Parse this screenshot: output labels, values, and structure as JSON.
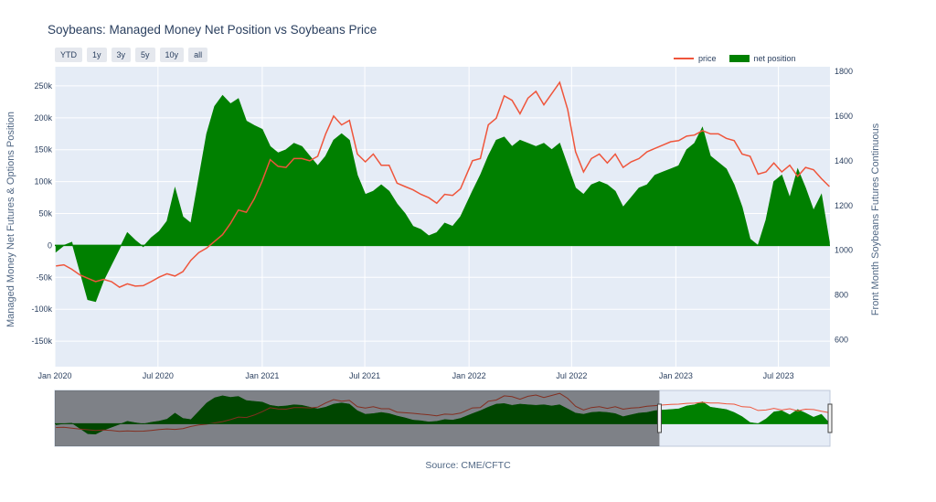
{
  "title": "Soybeans: Managed Money Net Position vs Soybeans Price",
  "range_buttons": [
    "YTD",
    "1y",
    "3y",
    "5y",
    "10y",
    "all"
  ],
  "legend": {
    "price": "price",
    "net": "net position"
  },
  "source": "Source: CME/CFTC",
  "colors": {
    "price": "#ef553b",
    "net": "#008000",
    "plot_bg": "#e5ecf6",
    "grid": "#ffffff"
  },
  "chart_data": {
    "type": "line",
    "title": "Soybeans: Managed Money Net Position vs Soybeans Price",
    "x_ticks": [
      "Jan 2020",
      "Jul 2020",
      "Jan 2021",
      "Jul 2021",
      "Jan 2022",
      "Jul 2022",
      "Jan 2023",
      "Jul 2023"
    ],
    "x_range": [
      "2020-01-01",
      "2023-09-30"
    ],
    "y_left": {
      "label": "Managed Money Net Futures & Options Position",
      "range": [
        -190000,
        280000
      ],
      "ticks": [
        -150000,
        -100000,
        -50000,
        0,
        50000,
        100000,
        150000,
        200000,
        250000
      ],
      "tick_labels": [
        "-150k",
        "-100k",
        "-50k",
        "0",
        "50k",
        "100k",
        "150k",
        "200k",
        "250k"
      ]
    },
    "y_right": {
      "label": "Front Month Soybeans Futures Continuous",
      "range": [
        480,
        1820
      ],
      "ticks": [
        600,
        800,
        1000,
        1200,
        1400,
        1600,
        1800
      ],
      "tick_labels": [
        "600",
        "800",
        "1000",
        "1200",
        "1400",
        "1600",
        "1800"
      ]
    },
    "series": [
      {
        "name": "price",
        "axis": "right",
        "kind": "line",
        "points": [
          [
            "2020-01-03",
            930
          ],
          [
            "2020-01-17",
            935
          ],
          [
            "2020-01-31",
            915
          ],
          [
            "2020-02-14",
            890
          ],
          [
            "2020-02-28",
            875
          ],
          [
            "2020-03-13",
            860
          ],
          [
            "2020-03-27",
            870
          ],
          [
            "2020-04-10",
            860
          ],
          [
            "2020-04-24",
            835
          ],
          [
            "2020-05-08",
            850
          ],
          [
            "2020-05-22",
            840
          ],
          [
            "2020-06-05",
            842
          ],
          [
            "2020-06-19",
            860
          ],
          [
            "2020-07-03",
            880
          ],
          [
            "2020-07-17",
            895
          ],
          [
            "2020-07-31",
            885
          ],
          [
            "2020-08-14",
            905
          ],
          [
            "2020-08-28",
            955
          ],
          [
            "2020-09-11",
            990
          ],
          [
            "2020-09-25",
            1010
          ],
          [
            "2020-10-09",
            1040
          ],
          [
            "2020-10-23",
            1070
          ],
          [
            "2020-11-06",
            1120
          ],
          [
            "2020-11-20",
            1180
          ],
          [
            "2020-12-04",
            1170
          ],
          [
            "2020-12-18",
            1230
          ],
          [
            "2021-01-01",
            1310
          ],
          [
            "2021-01-15",
            1405
          ],
          [
            "2021-01-29",
            1375
          ],
          [
            "2021-02-12",
            1370
          ],
          [
            "2021-02-26",
            1410
          ],
          [
            "2021-03-12",
            1410
          ],
          [
            "2021-03-26",
            1400
          ],
          [
            "2021-04-09",
            1420
          ],
          [
            "2021-04-23",
            1520
          ],
          [
            "2021-05-07",
            1600
          ],
          [
            "2021-05-21",
            1560
          ],
          [
            "2021-06-04",
            1580
          ],
          [
            "2021-06-18",
            1430
          ],
          [
            "2021-07-02",
            1395
          ],
          [
            "2021-07-16",
            1430
          ],
          [
            "2021-07-30",
            1380
          ],
          [
            "2021-08-13",
            1380
          ],
          [
            "2021-08-27",
            1300
          ],
          [
            "2021-09-10",
            1285
          ],
          [
            "2021-09-24",
            1270
          ],
          [
            "2021-10-08",
            1250
          ],
          [
            "2021-10-22",
            1235
          ],
          [
            "2021-11-05",
            1210
          ],
          [
            "2021-11-19",
            1250
          ],
          [
            "2021-12-03",
            1245
          ],
          [
            "2021-12-17",
            1275
          ],
          [
            "2022-01-07",
            1400
          ],
          [
            "2022-01-21",
            1410
          ],
          [
            "2022-02-04",
            1560
          ],
          [
            "2022-02-18",
            1590
          ],
          [
            "2022-03-04",
            1690
          ],
          [
            "2022-03-18",
            1670
          ],
          [
            "2022-04-01",
            1610
          ],
          [
            "2022-04-15",
            1680
          ],
          [
            "2022-04-29",
            1710
          ],
          [
            "2022-05-13",
            1650
          ],
          [
            "2022-05-27",
            1700
          ],
          [
            "2022-06-10",
            1750
          ],
          [
            "2022-06-24",
            1630
          ],
          [
            "2022-07-08",
            1440
          ],
          [
            "2022-07-22",
            1350
          ],
          [
            "2022-08-05",
            1410
          ],
          [
            "2022-08-19",
            1430
          ],
          [
            "2022-09-02",
            1390
          ],
          [
            "2022-09-16",
            1430
          ],
          [
            "2022-09-30",
            1370
          ],
          [
            "2022-10-14",
            1395
          ],
          [
            "2022-10-28",
            1410
          ],
          [
            "2022-11-11",
            1440
          ],
          [
            "2022-11-25",
            1455
          ],
          [
            "2022-12-09",
            1470
          ],
          [
            "2022-12-23",
            1485
          ],
          [
            "2023-01-06",
            1490
          ],
          [
            "2023-01-20",
            1510
          ],
          [
            "2023-02-03",
            1515
          ],
          [
            "2023-02-17",
            1535
          ],
          [
            "2023-03-03",
            1520
          ],
          [
            "2023-03-17",
            1520
          ],
          [
            "2023-03-31",
            1500
          ],
          [
            "2023-04-14",
            1490
          ],
          [
            "2023-04-28",
            1430
          ],
          [
            "2023-05-12",
            1420
          ],
          [
            "2023-05-26",
            1340
          ],
          [
            "2023-06-09",
            1350
          ],
          [
            "2023-06-23",
            1390
          ],
          [
            "2023-07-07",
            1350
          ],
          [
            "2023-07-21",
            1380
          ],
          [
            "2023-08-04",
            1330
          ],
          [
            "2023-08-18",
            1370
          ],
          [
            "2023-09-01",
            1360
          ],
          [
            "2023-09-15",
            1320
          ],
          [
            "2023-09-29",
            1285
          ]
        ]
      },
      {
        "name": "net position",
        "axis": "left",
        "kind": "area",
        "points": [
          [
            "2020-01-03",
            -10000
          ],
          [
            "2020-01-17",
            0
          ],
          [
            "2020-01-31",
            5000
          ],
          [
            "2020-02-14",
            -40000
          ],
          [
            "2020-02-28",
            -85000
          ],
          [
            "2020-03-13",
            -88000
          ],
          [
            "2020-03-27",
            -55000
          ],
          [
            "2020-04-10",
            -30000
          ],
          [
            "2020-04-24",
            -5000
          ],
          [
            "2020-05-08",
            20000
          ],
          [
            "2020-05-22",
            8000
          ],
          [
            "2020-06-05",
            -2000
          ],
          [
            "2020-06-19",
            12000
          ],
          [
            "2020-07-03",
            22000
          ],
          [
            "2020-07-17",
            38000
          ],
          [
            "2020-07-31",
            90000
          ],
          [
            "2020-08-14",
            45000
          ],
          [
            "2020-08-28",
            35000
          ],
          [
            "2020-09-11",
            105000
          ],
          [
            "2020-09-25",
            175000
          ],
          [
            "2020-10-09",
            218000
          ],
          [
            "2020-10-23",
            235000
          ],
          [
            "2020-11-06",
            222000
          ],
          [
            "2020-11-20",
            230000
          ],
          [
            "2020-12-04",
            195000
          ],
          [
            "2020-12-18",
            188000
          ],
          [
            "2021-01-01",
            182000
          ],
          [
            "2021-01-15",
            155000
          ],
          [
            "2021-01-29",
            145000
          ],
          [
            "2021-02-12",
            150000
          ],
          [
            "2021-02-26",
            160000
          ],
          [
            "2021-03-12",
            155000
          ],
          [
            "2021-03-26",
            140000
          ],
          [
            "2021-04-09",
            125000
          ],
          [
            "2021-04-23",
            140000
          ],
          [
            "2021-05-07",
            165000
          ],
          [
            "2021-05-21",
            175000
          ],
          [
            "2021-06-04",
            165000
          ],
          [
            "2021-06-18",
            110000
          ],
          [
            "2021-07-02",
            80000
          ],
          [
            "2021-07-16",
            85000
          ],
          [
            "2021-07-30",
            95000
          ],
          [
            "2021-08-13",
            85000
          ],
          [
            "2021-08-27",
            65000
          ],
          [
            "2021-09-10",
            50000
          ],
          [
            "2021-09-24",
            30000
          ],
          [
            "2021-10-08",
            25000
          ],
          [
            "2021-10-22",
            15000
          ],
          [
            "2021-11-05",
            20000
          ],
          [
            "2021-11-19",
            35000
          ],
          [
            "2021-12-03",
            30000
          ],
          [
            "2021-12-17",
            45000
          ],
          [
            "2022-01-07",
            85000
          ],
          [
            "2022-01-21",
            110000
          ],
          [
            "2022-02-04",
            140000
          ],
          [
            "2022-02-18",
            165000
          ],
          [
            "2022-03-04",
            170000
          ],
          [
            "2022-03-18",
            155000
          ],
          [
            "2022-04-01",
            165000
          ],
          [
            "2022-04-15",
            160000
          ],
          [
            "2022-04-29",
            155000
          ],
          [
            "2022-05-13",
            160000
          ],
          [
            "2022-05-27",
            150000
          ],
          [
            "2022-06-10",
            160000
          ],
          [
            "2022-06-24",
            125000
          ],
          [
            "2022-07-08",
            90000
          ],
          [
            "2022-07-22",
            80000
          ],
          [
            "2022-08-05",
            95000
          ],
          [
            "2022-08-19",
            100000
          ],
          [
            "2022-09-02",
            95000
          ],
          [
            "2022-09-16",
            85000
          ],
          [
            "2022-09-30",
            60000
          ],
          [
            "2022-10-14",
            75000
          ],
          [
            "2022-10-28",
            90000
          ],
          [
            "2022-11-11",
            95000
          ],
          [
            "2022-11-25",
            110000
          ],
          [
            "2022-12-09",
            115000
          ],
          [
            "2022-12-23",
            120000
          ],
          [
            "2023-01-06",
            125000
          ],
          [
            "2023-01-20",
            150000
          ],
          [
            "2023-02-03",
            160000
          ],
          [
            "2023-02-17",
            185000
          ],
          [
            "2023-03-03",
            140000
          ],
          [
            "2023-03-17",
            130000
          ],
          [
            "2023-03-31",
            120000
          ],
          [
            "2023-04-14",
            95000
          ],
          [
            "2023-04-28",
            60000
          ],
          [
            "2023-05-12",
            10000
          ],
          [
            "2023-05-26",
            0
          ],
          [
            "2023-06-09",
            40000
          ],
          [
            "2023-06-23",
            100000
          ],
          [
            "2023-07-07",
            110000
          ],
          [
            "2023-07-21",
            75000
          ],
          [
            "2023-08-04",
            120000
          ],
          [
            "2023-08-18",
            90000
          ],
          [
            "2023-09-01",
            55000
          ],
          [
            "2023-09-15",
            80000
          ],
          [
            "2023-09-29",
            5000
          ]
        ]
      }
    ],
    "range_slider": {
      "selected_from": "2023-01-01",
      "selected_to": "2023-09-30",
      "full_from": "2006-01-01"
    }
  }
}
